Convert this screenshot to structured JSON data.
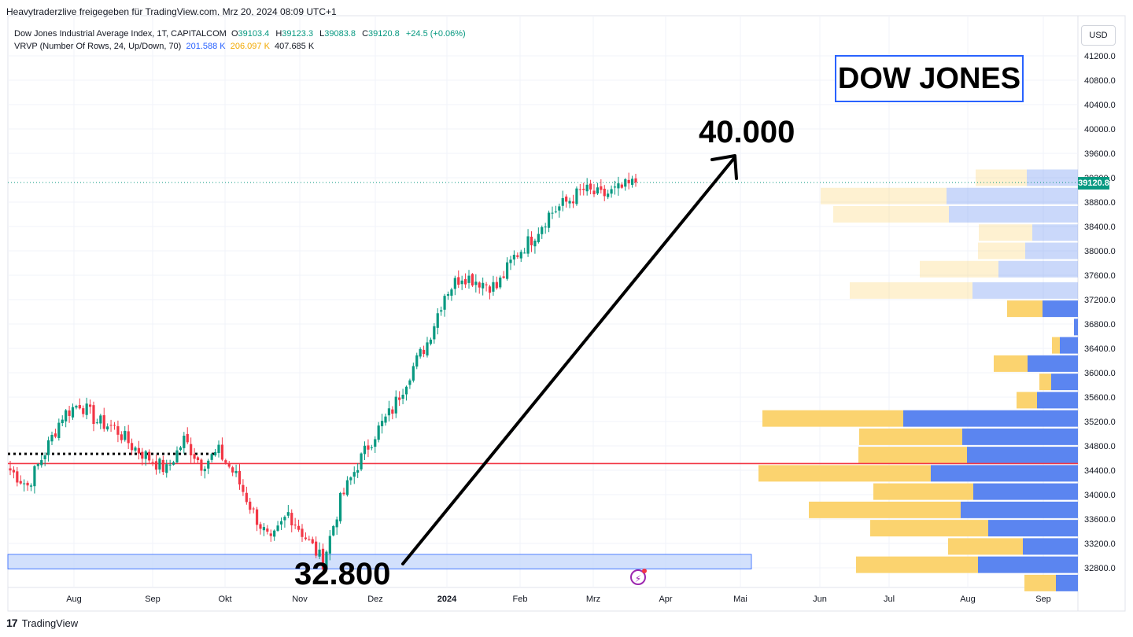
{
  "header": {
    "publisher_line": "Heavytraderzlive freigegeben für TradingView.com, Mrz 20, 2024 08:09 UTC+1"
  },
  "legend": {
    "symbol": "Dow Jones Industrial Average Index, 1T, CAPITALCOM",
    "open_label": "O",
    "open": "39103.4",
    "high_label": "H",
    "high": "39123.3",
    "low_label": "L",
    "low": "39083.8",
    "close_label": "C",
    "close": "39120.8",
    "change": "+24.5 (+0.06%)",
    "indicator": "VRVP (Number Of Rows, 24, Up/Down, 70)",
    "vol_up": "201.588 K",
    "vol_down": "206.097 K",
    "vol_total": "407.685 K"
  },
  "currency_button": "USD",
  "brand": {
    "logo": "17",
    "name": "TradingView"
  },
  "annotations": {
    "title": "DOW JONES",
    "target_label": "40.000",
    "start_label": "32.800",
    "target_price": 40000,
    "start_price": 32800,
    "resistance_level": 34510,
    "dotted_level": 34670,
    "support_zone": [
      32780,
      33020
    ]
  },
  "colors": {
    "up": "#089981",
    "down": "#f23645",
    "vp_up": "#5b85f0",
    "vp_down": "#fbd36f",
    "resistance": "#f23645",
    "zone_fill": "#c7d8fb",
    "zone_border": "#2962ff",
    "frame_blue": "#2962ff",
    "grid": "#f0f3fa"
  },
  "chart_data": {
    "type": "candlestick",
    "title": "Dow Jones Industrial Average Index, 1T, CAPITALCOM",
    "xlabel": "",
    "ylabel": "",
    "ylim": [
      32500,
      41500
    ],
    "y_ticks": [
      41200,
      40800,
      40400,
      40000,
      39600,
      39200,
      38800,
      38400,
      38000,
      37600,
      37200,
      36800,
      36400,
      36000,
      35600,
      35200,
      34800,
      34400,
      34000,
      33600,
      33200,
      32800
    ],
    "x_ticks": [
      "Aug",
      "Sep",
      "Okt",
      "Nov",
      "Dez",
      "2024",
      "Feb",
      "Mrz",
      "Apr",
      "Mai",
      "Jun",
      "Jul",
      "Aug",
      "Sep"
    ],
    "last_price": "39120.8",
    "close_path": [
      [
        "Jul 12",
        34400
      ],
      [
        "Jul 19",
        34150
      ],
      [
        "Jul 26",
        34700
      ],
      [
        "Aug 02",
        35300
      ],
      [
        "Aug 09",
        35500
      ],
      [
        "Aug 16",
        35200
      ],
      [
        "Aug 23",
        35100
      ],
      [
        "Aug 30",
        34800
      ],
      [
        "Sep 06",
        34600
      ],
      [
        "Sep 13",
        34400
      ],
      [
        "Sep 20",
        34900
      ],
      [
        "Sep 27",
        34500
      ],
      [
        "Okt 04",
        34700
      ],
      [
        "Okt 11",
        34300
      ],
      [
        "Okt 18",
        33700
      ],
      [
        "Okt 25",
        33200
      ],
      [
        "Nov 01",
        33700
      ],
      [
        "Nov 08",
        33300
      ],
      [
        "Nov 15",
        32900
      ],
      [
        "Nov 22",
        33900
      ],
      [
        "Nov 29",
        34500
      ],
      [
        "Dez 06",
        35000
      ],
      [
        "Dez 13",
        35400
      ],
      [
        "Dez 20",
        36000
      ],
      [
        "Dez 27",
        36500
      ],
      [
        "Jan 03",
        37300
      ],
      [
        "Jan 10",
        37600
      ],
      [
        "Jan 17",
        37500
      ],
      [
        "Jan 24",
        37400
      ],
      [
        "Jan 31",
        37900
      ],
      [
        "Feb 07",
        38200
      ],
      [
        "Feb 14",
        38600
      ],
      [
        "Feb 21",
        38800
      ],
      [
        "Feb 28",
        39000
      ],
      [
        "Mrz 06",
        38900
      ],
      [
        "Mrz 13",
        39000
      ],
      [
        "Mrz 20",
        39121
      ]
    ],
    "volume_profile": [
      {
        "price": 39200,
        "up": 65,
        "down": 65
      },
      {
        "price": 38900,
        "up": 167,
        "down": 160
      },
      {
        "price": 38600,
        "up": 164,
        "down": 147
      },
      {
        "price": 38300,
        "up": 58,
        "down": 68
      },
      {
        "price": 38000,
        "up": 67,
        "down": 60
      },
      {
        "price": 37700,
        "up": 101,
        "down": 100
      },
      {
        "price": 37350,
        "up": 134,
        "down": 156
      },
      {
        "price": 37050,
        "up": 45,
        "down": 45
      },
      {
        "price": 36750,
        "up": 5,
        "down": 0
      },
      {
        "price": 36450,
        "up": 23,
        "down": 10
      },
      {
        "price": 36150,
        "up": 64,
        "down": 43
      },
      {
        "price": 35850,
        "up": 34,
        "down": 15
      },
      {
        "price": 35550,
        "up": 52,
        "down": 26
      },
      {
        "price": 35250,
        "up": 222,
        "down": 179
      },
      {
        "price": 34950,
        "up": 147,
        "down": 131
      },
      {
        "price": 34650,
        "up": 141,
        "down": 138
      },
      {
        "price": 34350,
        "up": 187,
        "down": 219
      },
      {
        "price": 34050,
        "up": 133,
        "down": 127
      },
      {
        "price": 33750,
        "up": 149,
        "down": 193
      },
      {
        "price": 33450,
        "up": 114,
        "down": 150
      },
      {
        "price": 33150,
        "up": 70,
        "down": 95
      },
      {
        "price": 32850,
        "up": 127,
        "down": 155
      },
      {
        "price": 32550,
        "up": 28,
        "down": 40
      }
    ]
  }
}
